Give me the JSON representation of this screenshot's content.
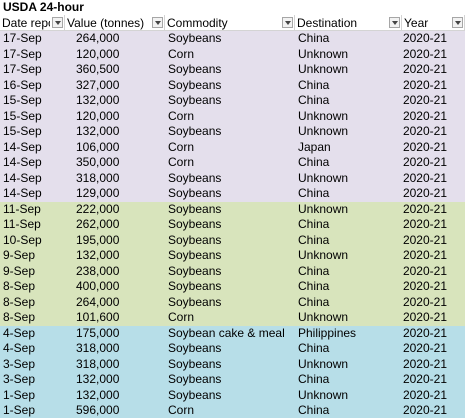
{
  "header": {
    "title": "USDA 24-hour"
  },
  "table": {
    "columns": [
      "Date reported",
      "Value (tonnes)",
      "Commodity",
      "Destination",
      "Year"
    ],
    "groups": [
      {
        "color": "#e4dfec",
        "rows": [
          [
            "17-Sep",
            "264,000",
            "Soybeans",
            "China",
            "2020-21"
          ],
          [
            "17-Sep",
            "120,000",
            "Corn",
            "Unknown",
            "2020-21"
          ],
          [
            "17-Sep",
            "360,500",
            "Soybeans",
            "Unknown",
            "2020-21"
          ],
          [
            "16-Sep",
            "327,000",
            "Soybeans",
            "China",
            "2020-21"
          ],
          [
            "15-Sep",
            "132,000",
            "Soybeans",
            "China",
            "2020-21"
          ],
          [
            "15-Sep",
            "120,000",
            "Corn",
            "Unknown",
            "2020-21"
          ],
          [
            "15-Sep",
            "132,000",
            "Soybeans",
            "Unknown",
            "2020-21"
          ],
          [
            "14-Sep",
            "106,000",
            "Corn",
            "Japan",
            "2020-21"
          ],
          [
            "14-Sep",
            "350,000",
            "Corn",
            "China",
            "2020-21"
          ],
          [
            "14-Sep",
            "318,000",
            "Soybeans",
            "Unknown",
            "2020-21"
          ],
          [
            "14-Sep",
            "129,000",
            "Soybeans",
            "China",
            "2020-21"
          ]
        ]
      },
      {
        "color": "#d8e4bc",
        "rows": [
          [
            "11-Sep",
            "222,000",
            "Soybeans",
            "Unknown",
            "2020-21"
          ],
          [
            "11-Sep",
            "262,000",
            "Soybeans",
            "China",
            "2020-21"
          ],
          [
            "10-Sep",
            "195,000",
            "Soybeans",
            "China",
            "2020-21"
          ],
          [
            "9-Sep",
            "132,000",
            "Soybeans",
            "Unknown",
            "2020-21"
          ],
          [
            "9-Sep",
            "238,000",
            "Soybeans",
            "China",
            "2020-21"
          ],
          [
            "8-Sep",
            "400,000",
            "Soybeans",
            "China",
            "2020-21"
          ],
          [
            "8-Sep",
            "264,000",
            "Soybeans",
            "China",
            "2020-21"
          ],
          [
            "8-Sep",
            "101,600",
            "Corn",
            "Unknown",
            "2020-21"
          ]
        ]
      },
      {
        "color": "#b7dee8",
        "rows": [
          [
            "4-Sep",
            "175,000",
            "Soybean cake & meal",
            "Philippines",
            "2020-21"
          ],
          [
            "4-Sep",
            "318,000",
            "Soybeans",
            "China",
            "2020-21"
          ],
          [
            "3-Sep",
            "318,000",
            "Soybeans",
            "Unknown",
            "2020-21"
          ],
          [
            "3-Sep",
            "132,000",
            "Soybeans",
            "China",
            "2020-21"
          ],
          [
            "1-Sep",
            "132,000",
            "Soybeans",
            "Unknown",
            "2020-21"
          ],
          [
            "1-Sep",
            "596,000",
            "Corn",
            "China",
            "2020-21"
          ]
        ]
      }
    ]
  }
}
